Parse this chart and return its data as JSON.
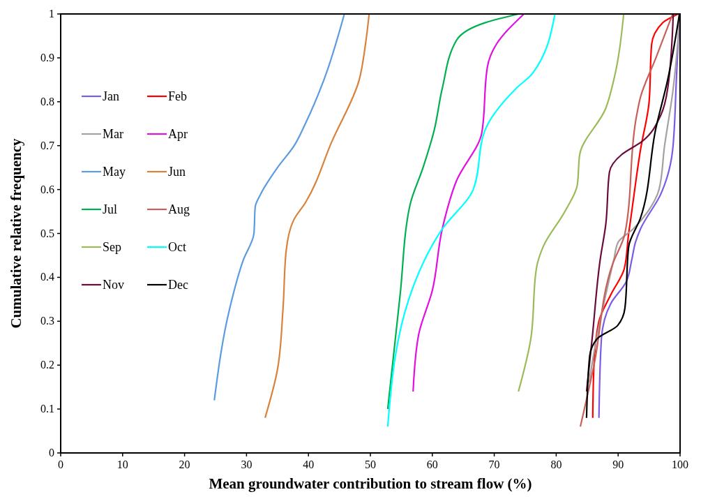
{
  "chart_data": {
    "type": "line",
    "xlabel": "Mean groundwater contribution to stream flow (%)",
    "ylabel": "Cumulative relative frequency",
    "xlim": [
      0,
      100
    ],
    "ylim": [
      0,
      1
    ],
    "xticks": [
      0,
      10,
      20,
      30,
      40,
      50,
      60,
      70,
      80,
      90,
      100
    ],
    "yticks": [
      0,
      0.1,
      0.2,
      0.3,
      0.4,
      0.5,
      0.6,
      0.7,
      0.8,
      0.9,
      1
    ],
    "grid": false,
    "legend": "top left",
    "marker": "none",
    "line_style": "solid",
    "series": [
      {
        "name": "Jan",
        "color": "#7b5ce6",
        "x": [
          86.9,
          87.3,
          88.8,
          91.3,
          92.2,
          92.8,
          93.6,
          96.9,
          98.8,
          99.4,
          99.9
        ],
        "values": [
          0.08,
          0.26,
          0.34,
          0.39,
          0.44,
          0.48,
          0.51,
          0.59,
          0.69,
          0.85,
          1
        ]
      },
      {
        "name": "Feb",
        "color": "#ff0000",
        "x": [
          85.9,
          86.1,
          86.9,
          88.8,
          91,
          91.7,
          92.1,
          93.6,
          95,
          95.4,
          97.2,
          99.7
        ],
        "values": [
          0.08,
          0.2,
          0.3,
          0.36,
          0.42,
          0.5,
          0.54,
          0.69,
          0.8,
          0.93,
          0.98,
          1
        ]
      },
      {
        "name": "Mar",
        "color": "#a6a0a0",
        "x": [
          85.3,
          86.5,
          88,
          89.3,
          90,
          92.4,
          94.8,
          96.6,
          97.5,
          98.8,
          100
        ],
        "values": [
          0.16,
          0.26,
          0.36,
          0.44,
          0.48,
          0.51,
          0.55,
          0.6,
          0.7,
          0.82,
          1
        ]
      },
      {
        "name": "Apr",
        "color": "#e010e0",
        "x": [
          56.9,
          57.8,
          60,
          61.6,
          63.9,
          68,
          68.9,
          70.3,
          74.8
        ],
        "values": [
          0.14,
          0.27,
          0.37,
          0.51,
          0.62,
          0.73,
          0.88,
          0.93,
          1
        ]
      },
      {
        "name": "May",
        "color": "#5b9be0",
        "x": [
          24.8,
          27.3,
          29.5,
          31.2,
          31.4,
          32.3,
          35,
          37.7,
          39.5,
          42.5,
          45.8
        ],
        "values": [
          0.12,
          0.33,
          0.44,
          0.5,
          0.56,
          0.59,
          0.65,
          0.7,
          0.75,
          0.85,
          1
        ]
      },
      {
        "name": "Jun",
        "color": "#d9823b",
        "x": [
          33,
          35,
          35.9,
          36.4,
          37.6,
          39.5,
          43.8,
          48.2,
          49.2,
          49.8
        ],
        "values": [
          0.08,
          0.19,
          0.33,
          0.46,
          0.53,
          0.57,
          0.71,
          0.85,
          0.93,
          1
        ]
      },
      {
        "name": "Jul",
        "color": "#00b050",
        "x": [
          52.8,
          54.8,
          56.4,
          58.5,
          60.3,
          61.6,
          63.9,
          68.5,
          73.9
        ],
        "values": [
          0.1,
          0.36,
          0.565,
          0.65,
          0.735,
          0.83,
          0.94,
          0.98,
          1
        ]
      },
      {
        "name": "Aug",
        "color": "#c8605a",
        "x": [
          83.9,
          86.1,
          89.1,
          91.1,
          93,
          93.6,
          96.1,
          98.8
        ],
        "values": [
          0.06,
          0.2,
          0.43,
          0.5,
          0.77,
          0.81,
          0.9,
          1
        ]
      },
      {
        "name": "Sep",
        "color": "#9bbb59",
        "x": [
          73.9,
          75.9,
          76.8,
          77.9,
          81.4,
          83.4,
          83.8,
          88,
          89.3,
          90.9
        ],
        "values": [
          0.14,
          0.26,
          0.42,
          0.47,
          0.55,
          0.61,
          0.68,
          0.785,
          0.85,
          1
        ]
      },
      {
        "name": "Oct",
        "color": "#00ffff",
        "x": [
          52.8,
          56.2,
          61.6,
          66.6,
          68.5,
          73.5,
          76.2,
          79.8
        ],
        "values": [
          0.06,
          0.35,
          0.51,
          0.6,
          0.735,
          0.83,
          0.865,
          1
        ]
      },
      {
        "name": "Nov",
        "color": "#6b0a3c",
        "x": [
          84.9,
          85.8,
          87.1,
          88,
          88.6,
          90.6,
          93.9,
          96.9,
          98,
          98.9
        ],
        "values": [
          0.14,
          0.26,
          0.44,
          0.52,
          0.64,
          0.68,
          0.71,
          0.77,
          0.83,
          1
        ]
      },
      {
        "name": "Dec",
        "color": "#000000",
        "x": [
          84.9,
          85.4,
          86.6,
          89.9,
          91.1,
          91.7,
          93.6,
          96.1,
          98,
          99.9
        ],
        "values": [
          0.08,
          0.22,
          0.26,
          0.29,
          0.33,
          0.47,
          0.535,
          0.74,
          0.85,
          1
        ]
      }
    ]
  }
}
